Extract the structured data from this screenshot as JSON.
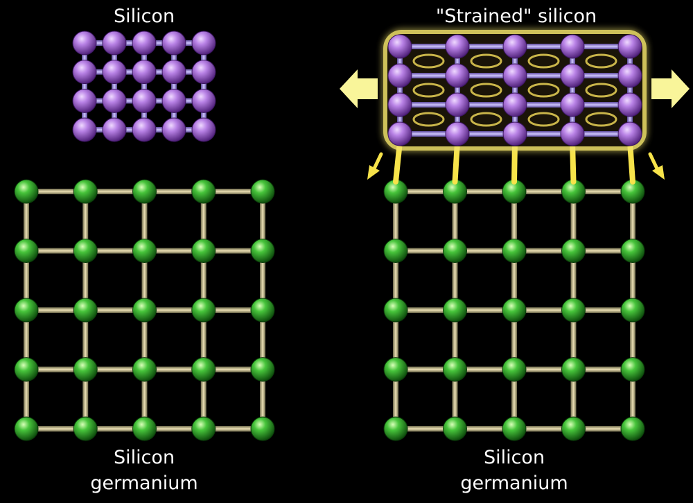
{
  "labels": {
    "silicon": "Silicon",
    "strained_silicon": "\"Strained\" silicon",
    "sige_left_line1": "Silicon",
    "sige_left_line2": "germanium",
    "sige_right_line1": "Silicon",
    "sige_right_line2": "germanium"
  },
  "colors": {
    "background": "#000000",
    "silicon_atom": "#a56ad6",
    "silicon_bond": "#9a8ee0",
    "germanium_atom": "#35b833",
    "germanium_bond": "#c2b07a",
    "strain_glow": "#f2e36a",
    "arrow": "#f9f59a"
  },
  "lattices": {
    "silicon": {
      "rows": 4,
      "cols": 5
    },
    "strained_silicon": {
      "rows": 4,
      "cols": 5
    },
    "silicon_germanium_left": {
      "rows": 5,
      "cols": 5
    },
    "silicon_germanium_right": {
      "rows": 5,
      "cols": 5
    }
  },
  "icons": {
    "strain_arrow_left": "arrow-left-icon",
    "strain_arrow_right": "arrow-right-icon",
    "relax_arrow_left": "arrow-down-left-icon",
    "relax_arrow_right": "arrow-down-right-icon"
  }
}
